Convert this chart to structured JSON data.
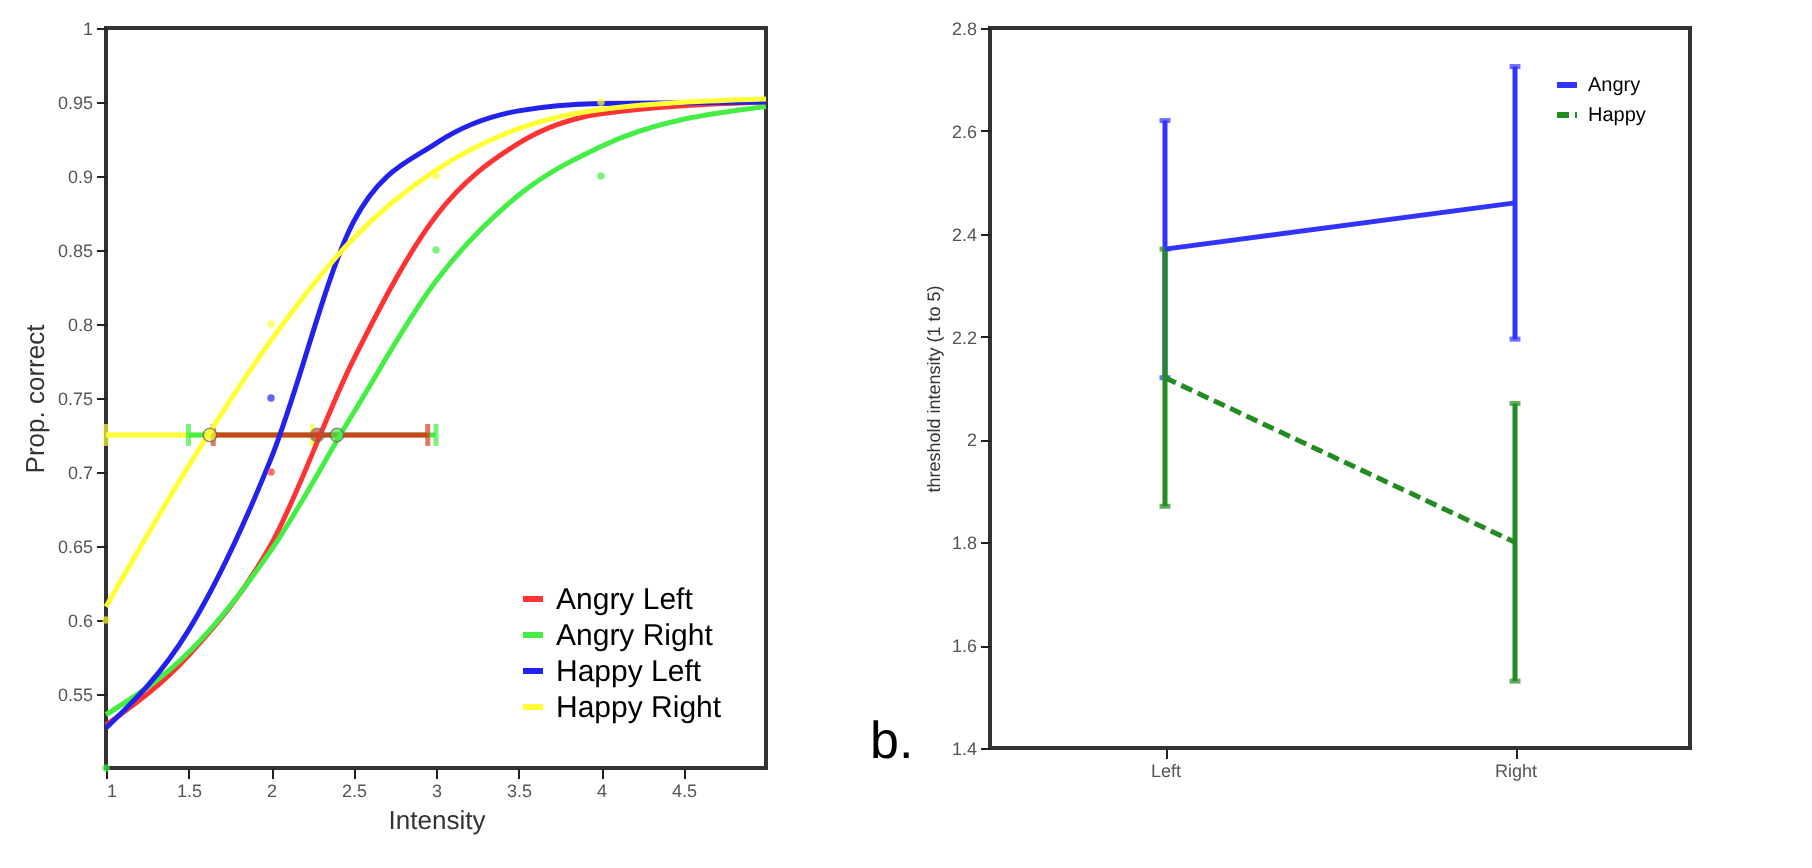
{
  "chart_data": [
    {
      "type": "line",
      "xlabel": "Intensity",
      "ylabel": "Prop. correct",
      "xlim": [
        1,
        5
      ],
      "xticks": [
        1,
        1.5,
        2,
        2.5,
        3,
        3.5,
        4,
        4.5
      ],
      "ylim": [
        0.5,
        1
      ],
      "yticks": [
        0.55,
        0.6,
        0.65,
        0.7,
        0.75,
        0.8,
        0.85,
        0.9,
        0.95,
        1
      ],
      "grid": false,
      "legend": "bottom right",
      "marker": "none",
      "series": [
        {
          "name": "Angry Left",
          "color": "#ff3333",
          "x": [
            1,
            1.5,
            2,
            2.5,
            3,
            3.5,
            4,
            5
          ],
          "values": [
            0.529,
            0.576,
            0.651,
            0.776,
            0.873,
            0.922,
            0.942,
            0.95
          ]
        },
        {
          "name": "Angry Right",
          "color": "#44ee44",
          "x": [
            1,
            1.5,
            2,
            2.5,
            3,
            3.5,
            4,
            5
          ],
          "values": [
            0.536,
            0.578,
            0.647,
            0.74,
            0.829,
            0.887,
            0.92,
            0.947
          ]
        },
        {
          "name": "Happy Left",
          "color": "#2222ee",
          "x": [
            1,
            1.5,
            2,
            2.5,
            3,
            3.5,
            4,
            5
          ],
          "values": [
            0.527,
            0.593,
            0.709,
            0.869,
            0.922,
            0.944,
            0.949,
            0.95
          ]
        },
        {
          "name": "Happy Right",
          "color": "#ffff33",
          "x": [
            1,
            1.5,
            2,
            2.5,
            3,
            3.5,
            4,
            5
          ],
          "values": [
            0.609,
            0.704,
            0.789,
            0.858,
            0.904,
            0.932,
            0.945,
            0.952
          ]
        },
        {
          "type": "scatter",
          "marker": "circle",
          "color": "#ff3333",
          "x": [
            2
          ],
          "values": [
            0.7
          ]
        },
        {
          "type": "scatter",
          "marker": "circle",
          "color": "#44ee44",
          "x": [
            1,
            3,
            4
          ],
          "values": [
            0.5,
            0.85,
            0.9
          ]
        },
        {
          "type": "scatter",
          "marker": "circle",
          "color": "#2222ee",
          "x": [
            2
          ],
          "values": [
            0.75
          ]
        },
        {
          "type": "scatter",
          "marker": "circle",
          "color": "#ffff33",
          "x": [
            1,
            2,
            3,
            4
          ],
          "values": [
            0.6,
            0.8,
            0.9,
            0.95
          ]
        },
        {
          "type": "scatter",
          "marker": "circle",
          "color": "#ffff33",
          "x": [
            1.63
          ],
          "values": [
            0.725
          ],
          "xerrors": [
            [
              1,
              2.25
            ]
          ]
        },
        {
          "type": "scatter",
          "marker": "circle",
          "color": "#44ee44",
          "x": [
            2.4
          ],
          "values": [
            0.725
          ],
          "xerrors": [
            [
              1.5,
              3
            ]
          ]
        },
        {
          "type": "scatter",
          "marker": "circle",
          "color": "#cc4422",
          "x": [
            2.28
          ],
          "values": [
            0.725
          ],
          "xerrors": [
            [
              1.65,
              2.95
            ]
          ]
        }
      ]
    },
    {
      "type": "line",
      "categories": [
        "Left",
        "Right"
      ],
      "ylabel": "threshold intensity (1 to 5)",
      "ylim": [
        1.4,
        2.8
      ],
      "yticks": [
        1.4,
        1.6,
        1.8,
        2,
        2.2,
        2.4,
        2.6,
        2.8
      ],
      "grid": false,
      "legend": "top right",
      "annotations": [
        "b."
      ],
      "series": [
        {
          "name": "Angry",
          "color": "#3333ff",
          "values": [
            2.37,
            2.46
          ],
          "errors": [
            0.25,
            0.265
          ],
          "line_style": "solid"
        },
        {
          "name": "Happy",
          "color": "#228b22",
          "values": [
            2.12,
            1.8
          ],
          "errors": [
            0.25,
            0.27
          ],
          "line_style": "dashed"
        }
      ]
    }
  ]
}
